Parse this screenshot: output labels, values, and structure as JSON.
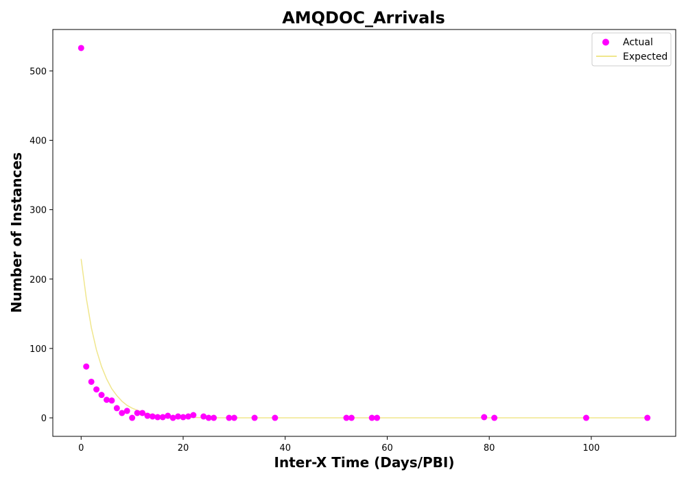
{
  "chart_data": {
    "type": "scatter",
    "title": "AMQDOC_Arrivals",
    "xlabel": "Inter-X Time (Days/PBI)",
    "ylabel": "Number of Instances",
    "xlim": [
      -5.55,
      116.55
    ],
    "ylim": [
      -26.65,
      559.65
    ],
    "xticks": [
      0,
      20,
      40,
      60,
      80,
      100
    ],
    "yticks": [
      0,
      100,
      200,
      300,
      400,
      500
    ],
    "grid": false,
    "legend_position": "top-right",
    "series": [
      {
        "name": "Actual",
        "kind": "scatter",
        "color": "#ff00ff",
        "points": [
          [
            0,
            533
          ],
          [
            1,
            74
          ],
          [
            2,
            52
          ],
          [
            3,
            41
          ],
          [
            4,
            33
          ],
          [
            5,
            26
          ],
          [
            6,
            25
          ],
          [
            7,
            14
          ],
          [
            8,
            7
          ],
          [
            9,
            10
          ],
          [
            10,
            0
          ],
          [
            11,
            7
          ],
          [
            12,
            7
          ],
          [
            13,
            3
          ],
          [
            14,
            2
          ],
          [
            15,
            1
          ],
          [
            16,
            1
          ],
          [
            17,
            3
          ],
          [
            18,
            0
          ],
          [
            19,
            2
          ],
          [
            20,
            1
          ],
          [
            21,
            2
          ],
          [
            22,
            4
          ],
          [
            24,
            2
          ],
          [
            25,
            0
          ],
          [
            26,
            0
          ],
          [
            29,
            0
          ],
          [
            30,
            0
          ],
          [
            34,
            0
          ],
          [
            38,
            0
          ],
          [
            52,
            0
          ],
          [
            53,
            0
          ],
          [
            57,
            0
          ],
          [
            58,
            0
          ],
          [
            79,
            1
          ],
          [
            81,
            0
          ],
          [
            99,
            0
          ],
          [
            111,
            0
          ]
        ]
      },
      {
        "name": "Expected",
        "kind": "line",
        "color": "#f0e68c",
        "points": [
          [
            0,
            229
          ],
          [
            1,
            173
          ],
          [
            2,
            130
          ],
          [
            3,
            98
          ],
          [
            4,
            74
          ],
          [
            5,
            56
          ],
          [
            6,
            42
          ],
          [
            7,
            32
          ],
          [
            8,
            24
          ],
          [
            9,
            18
          ],
          [
            10,
            14
          ],
          [
            12,
            8
          ],
          [
            14,
            4.5
          ],
          [
            16,
            2.6
          ],
          [
            18,
            1.5
          ],
          [
            20,
            0.8
          ],
          [
            25,
            0.2
          ],
          [
            30,
            0
          ],
          [
            40,
            0
          ],
          [
            60,
            0
          ],
          [
            80,
            0
          ],
          [
            100,
            0
          ],
          [
            111,
            0
          ]
        ]
      }
    ]
  }
}
